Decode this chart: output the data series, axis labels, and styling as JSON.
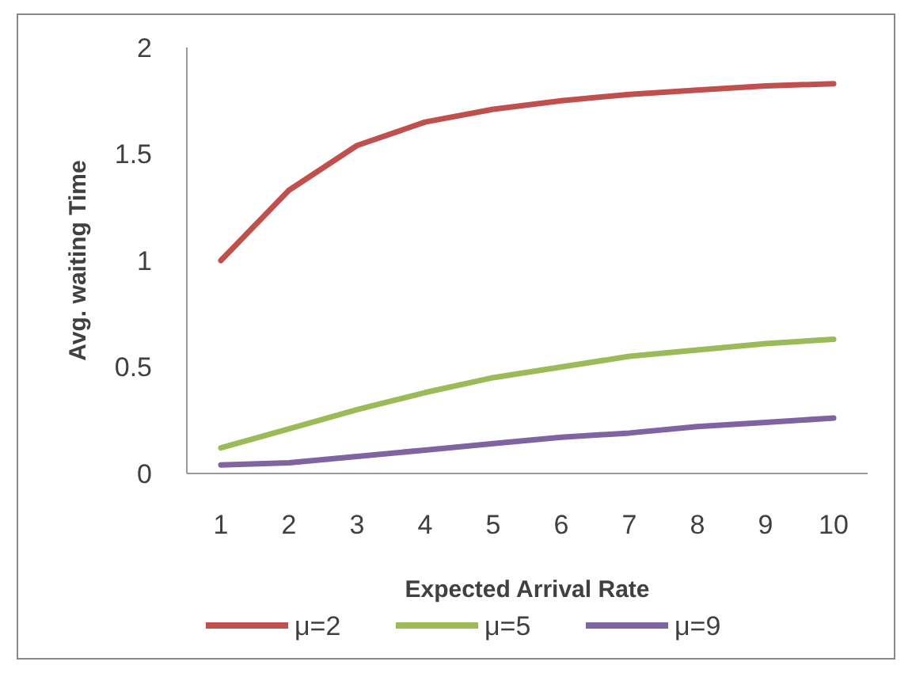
{
  "chart_data": {
    "type": "line",
    "xlabel": "Expected Arrival Rate",
    "ylabel": "Avg. waiting Time",
    "categories": [
      "1",
      "2",
      "3",
      "4",
      "5",
      "6",
      "7",
      "8",
      "9",
      "10"
    ],
    "ylim": [
      0,
      2
    ],
    "yticks": [
      0,
      0.5,
      1,
      1.5,
      2
    ],
    "grid": false,
    "legend": "bottom",
    "marker": "none",
    "line_style": "solid",
    "series": [
      {
        "name": "μ=2",
        "color": "#c0504d",
        "values": [
          1.0,
          1.33,
          1.54,
          1.65,
          1.71,
          1.75,
          1.78,
          1.8,
          1.82,
          1.83
        ]
      },
      {
        "name": "μ=5",
        "color": "#9bbb59",
        "values": [
          0.12,
          0.21,
          0.3,
          0.38,
          0.45,
          0.5,
          0.55,
          0.58,
          0.61,
          0.63
        ]
      },
      {
        "name": "μ=9",
        "color": "#8064a2",
        "values": [
          0.04,
          0.05,
          0.08,
          0.11,
          0.14,
          0.17,
          0.19,
          0.22,
          0.24,
          0.26
        ]
      }
    ]
  }
}
